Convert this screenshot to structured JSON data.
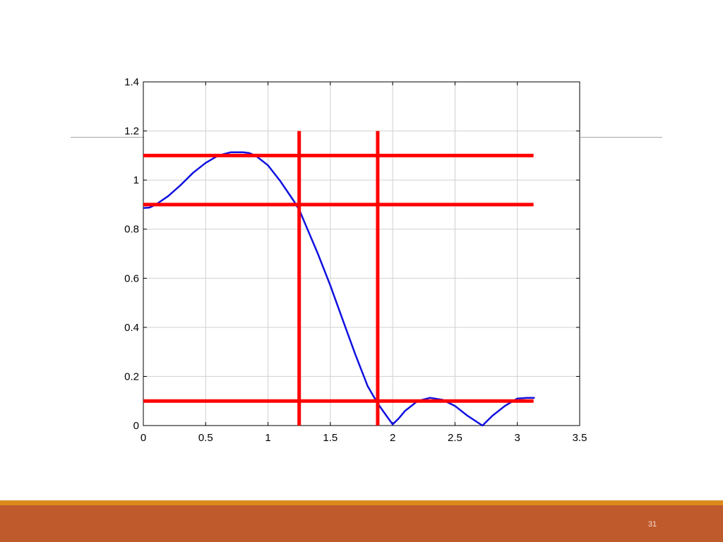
{
  "slide": {
    "number": "31"
  },
  "colors": {
    "curve": "#1010e0",
    "markers": "#ff0000",
    "grid": "#d0d0d0",
    "axis": "#000000",
    "footer_gold": "#dd8a1c",
    "footer_bar": "#bf5a2d"
  },
  "chart_data": {
    "type": "line",
    "title": "",
    "xlabel": "",
    "ylabel": "",
    "xlim": [
      0,
      3.5
    ],
    "ylim": [
      0,
      1.4
    ],
    "grid": true,
    "x_ticks": [
      0,
      0.5,
      1,
      1.5,
      2,
      2.5,
      3,
      3.5
    ],
    "y_ticks": [
      0,
      0.2,
      0.4,
      0.6,
      0.8,
      1,
      1.2,
      1.4
    ],
    "x_tick_labels": [
      "0",
      "0.5",
      "1",
      "1.5",
      "2",
      "2.5",
      "3",
      "3.5"
    ],
    "y_tick_labels": [
      "0",
      "0.2",
      "0.4",
      "0.6",
      "0.8",
      "1",
      "1.2",
      "1.4"
    ],
    "series": [
      {
        "x": [
          0,
          0.05,
          0.1,
          0.2,
          0.3,
          0.4,
          0.5,
          0.6,
          0.7,
          0.8,
          0.85,
          0.9,
          1.0,
          1.1,
          1.2,
          1.25,
          1.3,
          1.4,
          1.5,
          1.6,
          1.7,
          1.8,
          1.88,
          1.95,
          2.0,
          2.05,
          2.1,
          2.2,
          2.3,
          2.4,
          2.5,
          2.6,
          2.72,
          2.8,
          2.9,
          3.0,
          3.08,
          3.14
        ],
        "values": [
          0.886,
          0.888,
          0.9,
          0.935,
          0.98,
          1.03,
          1.07,
          1.1,
          1.113,
          1.113,
          1.11,
          1.1,
          1.06,
          0.995,
          0.92,
          0.88,
          0.82,
          0.7,
          0.57,
          0.43,
          0.29,
          0.16,
          0.09,
          0.04,
          0.005,
          0.03,
          0.06,
          0.1,
          0.113,
          0.105,
          0.08,
          0.04,
          0.0,
          0.04,
          0.08,
          0.11,
          0.113,
          0.113
        ]
      }
    ],
    "horizontal_lines": [
      {
        "y": 1.1,
        "x_start": 0,
        "x_end": 3.13
      },
      {
        "y": 0.9,
        "x_start": 0,
        "x_end": 3.13
      },
      {
        "y": 0.1,
        "x_start": 0,
        "x_end": 3.13
      }
    ],
    "vertical_lines": [
      {
        "x": 1.25,
        "y_start": 0,
        "y_end": 1.2
      },
      {
        "x": 1.88,
        "y_start": 0,
        "y_end": 1.2
      }
    ]
  }
}
